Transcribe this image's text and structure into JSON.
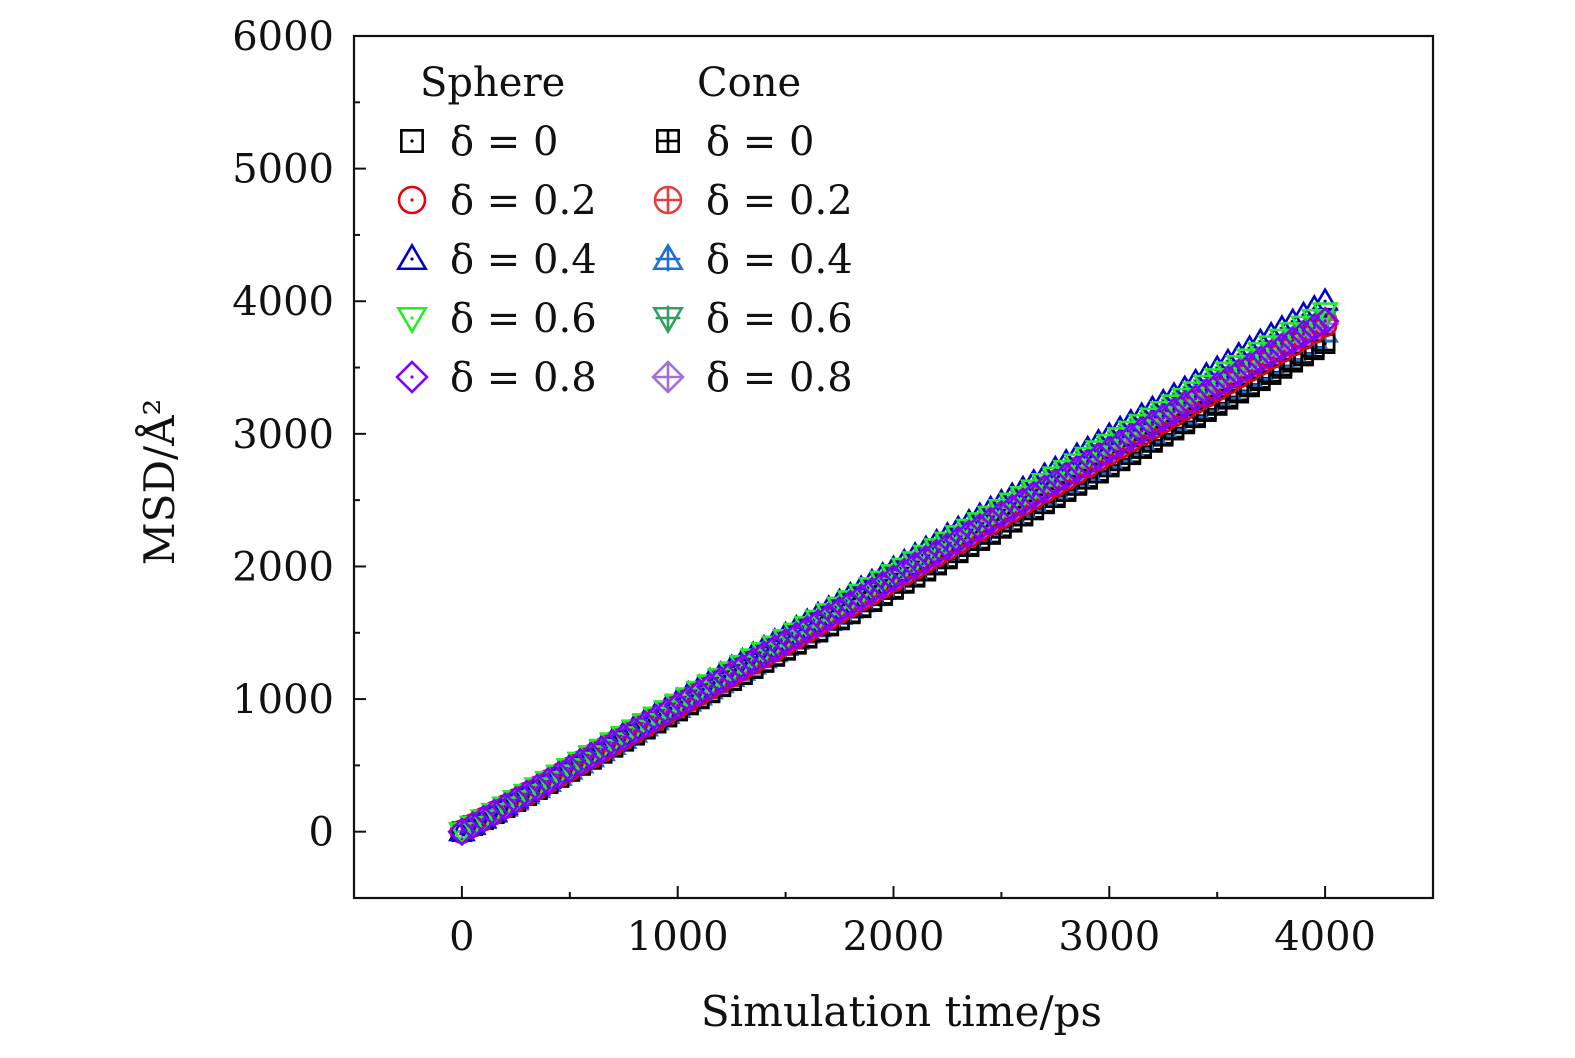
{
  "chart_data": {
    "type": "scatter",
    "xlabel": "Simulation time/ps",
    "ylabel": "MSD/Å²",
    "xlim": [
      -500,
      4500
    ],
    "ylim": [
      -500,
      6000
    ],
    "xticks": [
      0,
      1000,
      2000,
      3000,
      4000
    ],
    "xtick_labels": [
      "0",
      "1000",
      "2000",
      "3000",
      "4000"
    ],
    "yticks": [
      0,
      1000,
      2000,
      3000,
      4000,
      5000,
      6000
    ],
    "ytick_labels": [
      "0",
      "1000",
      "2000",
      "3000",
      "4000",
      "5000",
      "6000"
    ],
    "grid": false,
    "legend_placement": "top-left",
    "legend_groups": [
      "Sphere",
      "Cone"
    ],
    "x_start": 0,
    "x_end": 4000,
    "series": [
      {
        "name": "δ = 0",
        "group": "Sphere",
        "marker": "square-dot",
        "color": "#000000",
        "y_end": 3680
      },
      {
        "name": "δ = 0.2",
        "group": "Sphere",
        "marker": "circle-dot",
        "color": "#e8000b",
        "y_end": 3820
      },
      {
        "name": "δ = 0.4",
        "group": "Sphere",
        "marker": "triangle-up-dot",
        "color": "#0000cc",
        "y_end": 4000
      },
      {
        "name": "δ = 0.6",
        "group": "Sphere",
        "marker": "triangle-down-dot",
        "color": "#22ee22",
        "y_end": 3920
      },
      {
        "name": "δ = 0.8",
        "group": "Sphere",
        "marker": "diamond-dot",
        "color": "#7f00ff",
        "y_end": 3850
      },
      {
        "name": "δ = 0",
        "group": "Cone",
        "marker": "square-plus",
        "color": "#000000",
        "y_end": 3700
      },
      {
        "name": "δ = 0.2",
        "group": "Cone",
        "marker": "circle-plus",
        "color": "#e04040",
        "y_end": 3860
      },
      {
        "name": "δ = 0.4",
        "group": "Cone",
        "marker": "triangle-up-plus",
        "color": "#2070d0",
        "y_end": 3760
      },
      {
        "name": "δ = 0.6",
        "group": "Cone",
        "marker": "triangle-down-plus",
        "color": "#30a060",
        "y_end": 3880
      },
      {
        "name": "δ = 0.8",
        "group": "Cone",
        "marker": "diamond-plus",
        "color": "#a070d8",
        "y_end": 3830
      }
    ]
  }
}
